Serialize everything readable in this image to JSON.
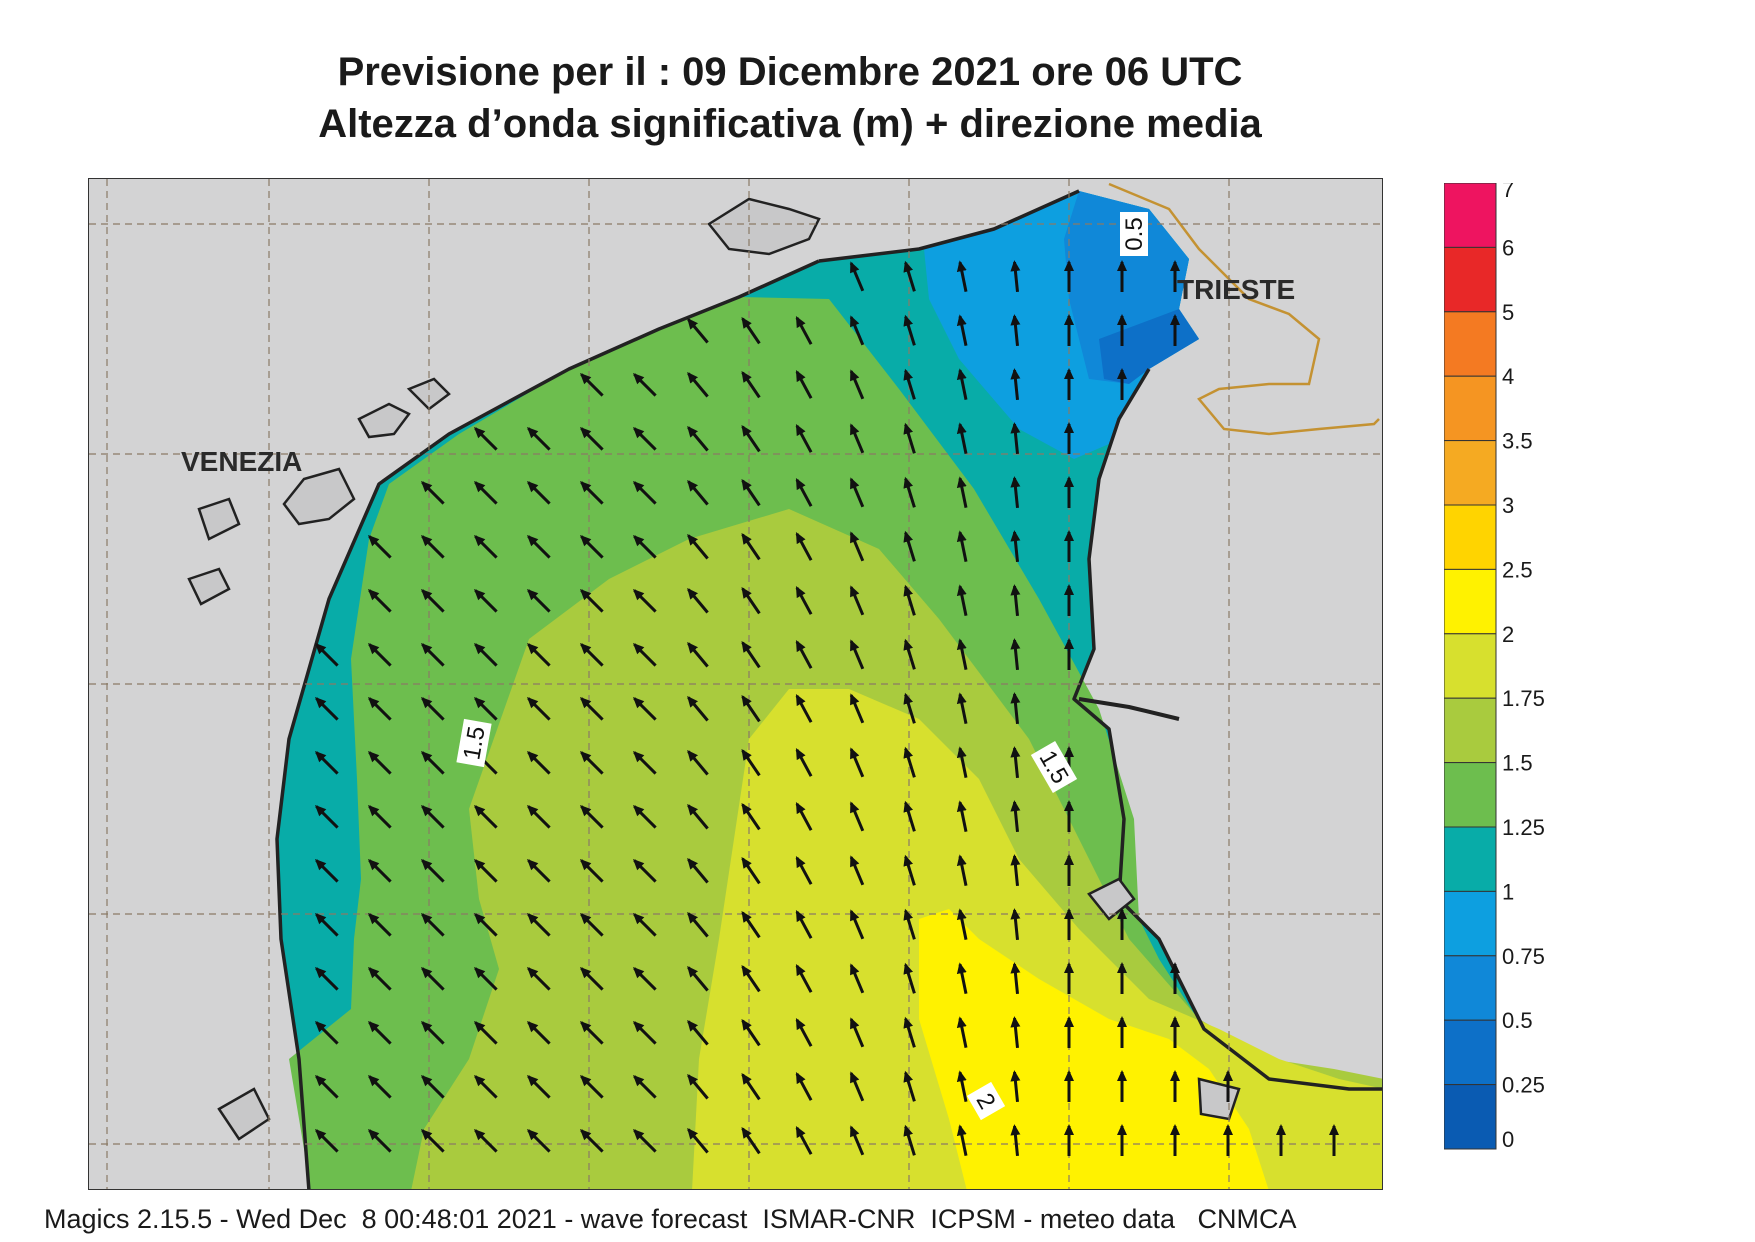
{
  "header": {
    "line1": "Previsione per il  :  09 Dicembre  2021   ore 06 UTC",
    "line2": "Altezza d’onda significativa (m) + direzione media"
  },
  "map": {
    "cities": [
      {
        "name": "VENEZIA"
      },
      {
        "name": "TRIESTE"
      }
    ],
    "contour_labels": [
      "0.5",
      "1.5",
      "1.5",
      "2"
    ]
  },
  "legend": {
    "labels": [
      "7",
      "6",
      "5",
      "4",
      "3.5",
      "3",
      "2.5",
      "2",
      "1.75",
      "1.5",
      "1.25",
      "1",
      "0.75",
      "0.5",
      "0.25",
      "0"
    ],
    "colors": [
      "#EE1460",
      "#E82828",
      "#F47A22",
      "#F59522",
      "#F5AA22",
      "#FFD400",
      "#FFF200",
      "#D7E02E",
      "#A9CB3E",
      "#6DBE4E",
      "#08ACA8",
      "#0D9FE0",
      "#1088D8",
      "#0D70C8",
      "#0A5BB2"
    ]
  },
  "footer": {
    "text": "Magics 2.15.5 - Wed Dec  8 00:48:01 2021 - wave forecast  ISMAR-CNR  ICPSM - meteo data   CNMCA"
  }
}
